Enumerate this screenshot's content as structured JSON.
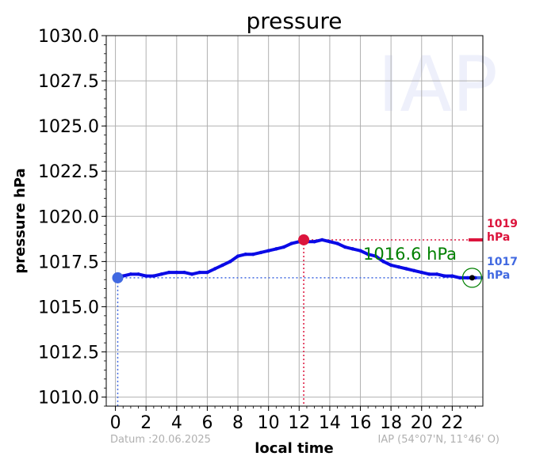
{
  "chart_data": {
    "type": "line",
    "title": "pressure",
    "xlabel": "local time",
    "ylabel": "pressure hPa",
    "xlim": [
      -0.6,
      24.0
    ],
    "ylim": [
      1009.5,
      1030.0
    ],
    "xticks": [
      0,
      2,
      4,
      6,
      8,
      10,
      12,
      14,
      16,
      18,
      20,
      22
    ],
    "yticks": [
      1010.0,
      1012.5,
      1015.0,
      1017.5,
      1020.0,
      1022.5,
      1025.0,
      1027.5,
      1030.0
    ],
    "ytick_labels": [
      "1010.0",
      "1012.5",
      "1015.0",
      "1017.5",
      "1020.0",
      "1022.5",
      "1025.0",
      "1027.5",
      "1030.0"
    ],
    "grid": true,
    "series": [
      {
        "color": "#0a0ae6",
        "x": [
          0.0,
          0.5,
          1.0,
          1.5,
          2.0,
          2.5,
          3.0,
          3.5,
          4.0,
          4.5,
          5.0,
          5.5,
          6.0,
          6.5,
          7.0,
          7.5,
          8.0,
          8.5,
          9.0,
          9.5,
          10.0,
          10.5,
          11.0,
          11.5,
          12.0,
          12.5,
          13.0,
          13.5,
          14.0,
          14.5,
          15.0,
          15.5,
          16.0,
          16.5,
          17.0,
          17.5,
          18.0,
          18.5,
          19.0,
          19.5,
          20.0,
          20.5,
          21.0,
          21.5,
          22.0,
          22.5,
          23.0,
          23.5
        ],
        "y": [
          1016.6,
          1016.7,
          1016.8,
          1016.8,
          1016.7,
          1016.7,
          1016.8,
          1016.9,
          1016.9,
          1016.9,
          1016.8,
          1016.9,
          1016.9,
          1017.1,
          1017.3,
          1017.5,
          1017.8,
          1017.9,
          1017.9,
          1018.0,
          1018.1,
          1018.2,
          1018.3,
          1018.5,
          1018.6,
          1018.6,
          1018.6,
          1018.7,
          1018.6,
          1018.5,
          1018.3,
          1018.2,
          1018.1,
          1017.9,
          1017.8,
          1017.5,
          1017.3,
          1017.2,
          1017.1,
          1017.0,
          1016.9,
          1016.8,
          1016.8,
          1016.7,
          1016.7,
          1016.6,
          1016.6,
          1016.6
        ]
      }
    ],
    "min_marker": {
      "x": 0.15,
      "y": 1016.6,
      "color": "#4169e1"
    },
    "max_marker": {
      "x": 12.3,
      "y": 1018.7,
      "color": "#dc143c"
    },
    "current_marker": {
      "x": 23.3,
      "y": 1016.6,
      "color": "#008000"
    },
    "annotations": {
      "current_value": "1016.6 hPa",
      "max_value_label": "1019",
      "min_value_label": "1017",
      "unit": "hPa"
    }
  },
  "footer": {
    "date": "Datum :20.06.2025",
    "station": "IAP (54°07'N, 11°46' O)"
  },
  "watermark": "IAP"
}
